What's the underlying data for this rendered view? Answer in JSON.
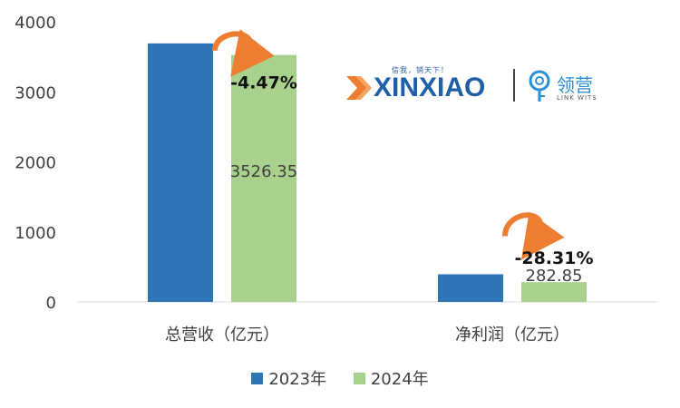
{
  "chart_data": {
    "type": "bar",
    "categories": [
      "总营收（亿元）",
      "净利润（亿元）"
    ],
    "series": [
      {
        "name": "2023年",
        "color": "#2e75b6",
        "values": [
          3691.3,
          394.55
        ]
      },
      {
        "name": "2024年",
        "color": "#a9d18e",
        "values": [
          3526.35,
          282.85
        ],
        "data_labels": [
          "3526.35",
          "282.85"
        ]
      }
    ],
    "change_labels": [
      "-4.47%",
      "-28.31%"
    ],
    "ylim": [
      0,
      4000
    ],
    "yticks": [
      "0",
      "1000",
      "2000",
      "3000",
      "4000"
    ],
    "legend_position": "bottom",
    "grid": false,
    "arrow_color": "#ed7d31"
  },
  "logo": {
    "slogan": "信我，销天下！",
    "brand": "XINXIAO",
    "partner_cn": "领营",
    "partner_en": "LINK WITS"
  }
}
